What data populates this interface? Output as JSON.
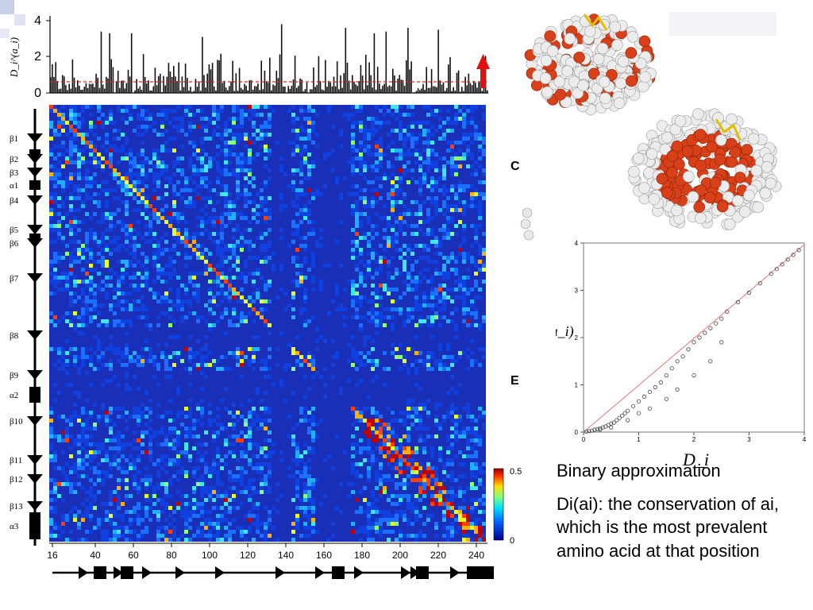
{
  "figure": {
    "top_bar_chart": {
      "ylabel": "D_i^(a_i)",
      "y_ticks": [
        "0",
        "2",
        "4"
      ],
      "threshold_value": 0.5,
      "threshold_color": "#d92020",
      "bar_color": "#111111",
      "arrow_color": "#e01010"
    },
    "heatmap": {
      "x_ticks": [
        "16",
        "40",
        "60",
        "80",
        "100",
        "120",
        "140",
        "160",
        "180",
        "200",
        "220",
        "240"
      ],
      "secondary_structure": [
        "β1",
        "β2",
        "β3",
        "α1",
        "β4",
        "β5",
        "β6",
        "β7",
        "β8",
        "β9",
        "α2",
        "β10",
        "β11",
        "β12",
        "β13",
        "α3"
      ],
      "colorbar_ticks": [
        "0.5",
        "0"
      ],
      "background_color": "#1a2fb8"
    },
    "panel_letters": [
      "C",
      "E"
    ],
    "scatter": {
      "xlabel": "D_i",
      "ylabel": "D̄_i^(a_i)",
      "x_ticks": [
        "0",
        "1",
        "2",
        "3",
        "4"
      ],
      "y_ticks": [
        "0",
        "1",
        "2",
        "3",
        "4"
      ],
      "diagonal_color": "#e07a7a"
    }
  },
  "caption": {
    "heading": "Binary approximation",
    "body": "Di(ai): the conservation of ai, which is the most prevalent amino acid at that position"
  },
  "chart_data": {
    "type": "scatter",
    "xlabel": "D_i",
    "ylabel": "D̄_i^(a_i)",
    "xlim": [
      0,
      4
    ],
    "ylim": [
      0,
      4
    ],
    "x": [
      0.05,
      0.1,
      0.15,
      0.2,
      0.25,
      0.3,
      0.35,
      0.4,
      0.45,
      0.5,
      0.55,
      0.6,
      0.65,
      0.7,
      0.75,
      0.8,
      0.9,
      1.0,
      1.1,
      1.2,
      1.3,
      1.4,
      1.5,
      1.6,
      1.7,
      1.8,
      1.9,
      2.0,
      2.1,
      2.2,
      2.3,
      2.4,
      2.5,
      2.6,
      2.8,
      3.0,
      3.2,
      3.4,
      3.5,
      3.6,
      3.7,
      3.8,
      3.9,
      0.3,
      0.5,
      0.8,
      1.0,
      1.2,
      1.5,
      1.7,
      2.0,
      2.3,
      2.5
    ],
    "y": [
      0.01,
      0.02,
      0.03,
      0.05,
      0.06,
      0.08,
      0.1,
      0.12,
      0.15,
      0.18,
      0.2,
      0.25,
      0.3,
      0.35,
      0.4,
      0.45,
      0.55,
      0.65,
      0.75,
      0.85,
      0.95,
      1.05,
      1.2,
      1.35,
      1.5,
      1.6,
      1.75,
      1.9,
      2.0,
      2.1,
      2.2,
      2.3,
      2.4,
      2.55,
      2.75,
      2.95,
      3.15,
      3.35,
      3.45,
      3.55,
      3.65,
      3.75,
      3.85,
      0.05,
      0.1,
      0.25,
      0.4,
      0.5,
      0.7,
      0.9,
      1.2,
      1.5,
      1.9
    ],
    "grid": false
  }
}
